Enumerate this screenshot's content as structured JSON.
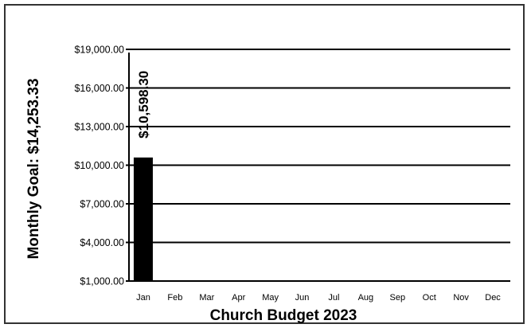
{
  "chart_data": {
    "type": "bar",
    "title": "",
    "xlabel": "Church Budget 2023",
    "ylabel": "Monthly Goal:  $14,253.33",
    "categories": [
      "Jan",
      "Feb",
      "Mar",
      "Apr",
      "May",
      "Jun",
      "Jul",
      "Aug",
      "Sep",
      "Oct",
      "Nov",
      "Dec"
    ],
    "values": [
      10598.3,
      null,
      null,
      null,
      null,
      null,
      null,
      null,
      null,
      null,
      null,
      null
    ],
    "data_labels": [
      "$10,598.30"
    ],
    "ylim": [
      1000,
      19000
    ],
    "yticks": [
      1000,
      4000,
      7000,
      10000,
      13000,
      16000,
      19000
    ],
    "ytick_labels": [
      "$1,000.00",
      "$4,000.00",
      "$7,000.00",
      "$10,000.00",
      "$13,000.00",
      "$16,000.00",
      "$19,000.00"
    ],
    "grid": true,
    "legend": "none",
    "colors": {
      "bar": "#000000",
      "grid": "#000000",
      "frame": "#333333"
    }
  }
}
